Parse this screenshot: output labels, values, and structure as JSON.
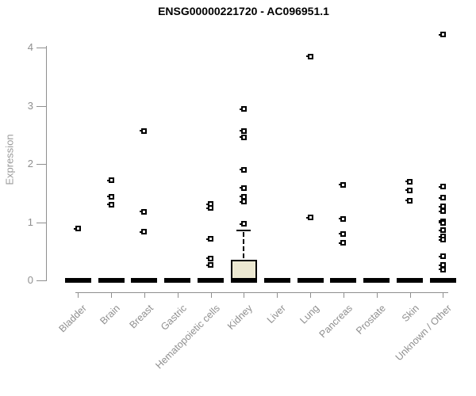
{
  "title": "ENSG00000221720 - AC096951.1",
  "chart_data": {
    "type": "boxplot",
    "title": "ENSG00000221720 - AC096951.1",
    "xlabel": "",
    "ylabel": "Expression",
    "ylim": [
      0,
      4.3
    ],
    "yticks": [
      0,
      1,
      2,
      3,
      4
    ],
    "grid": false,
    "legend": false,
    "categories": [
      "Bladder",
      "Brain",
      "Breast",
      "Gastric",
      "Hematopoietic cells",
      "Kidney",
      "Liver",
      "Lung",
      "Pancreas",
      "Prostate",
      "Skin",
      "Unknown / Other"
    ],
    "boxes": [
      {
        "category": "Bladder",
        "q1": 0,
        "median": 0,
        "q3": 0,
        "whisker_low": 0,
        "whisker_high": 0,
        "outliers": [
          0.89
        ]
      },
      {
        "category": "Brain",
        "q1": 0,
        "median": 0,
        "q3": 0,
        "whisker_low": 0,
        "whisker_high": 0,
        "outliers": [
          1.72,
          1.44,
          1.3
        ]
      },
      {
        "category": "Breast",
        "q1": 0,
        "median": 0,
        "q3": 0,
        "whisker_low": 0,
        "whisker_high": 0,
        "outliers": [
          2.57,
          1.18,
          0.83
        ]
      },
      {
        "category": "Gastric",
        "q1": 0,
        "median": 0,
        "q3": 0,
        "whisker_low": 0,
        "whisker_high": 0,
        "outliers": []
      },
      {
        "category": "Hematopoietic cells",
        "q1": 0,
        "median": 0,
        "q3": 0,
        "whisker_low": 0,
        "whisker_high": 0,
        "outliers": [
          1.31,
          1.24,
          0.71,
          0.38,
          0.26
        ]
      },
      {
        "category": "Kidney",
        "q1": 0,
        "median": 0,
        "q3": 0.35,
        "whisker_low": 0,
        "whisker_high": 0.86,
        "outliers": [
          2.94,
          2.57,
          2.46,
          1.9,
          1.59,
          1.44,
          1.35,
          0.97
        ]
      },
      {
        "category": "Liver",
        "q1": 0,
        "median": 0,
        "q3": 0,
        "whisker_low": 0,
        "whisker_high": 0,
        "outliers": []
      },
      {
        "category": "Lung",
        "q1": 0,
        "median": 0,
        "q3": 0,
        "whisker_low": 0,
        "whisker_high": 0,
        "outliers": [
          3.85,
          1.08
        ]
      },
      {
        "category": "Pancreas",
        "q1": 0,
        "median": 0,
        "q3": 0,
        "whisker_low": 0,
        "whisker_high": 0,
        "outliers": [
          1.64,
          1.06,
          0.8,
          0.64
        ]
      },
      {
        "category": "Prostate",
        "q1": 0,
        "median": 0,
        "q3": 0,
        "whisker_low": 0,
        "whisker_high": 0,
        "outliers": []
      },
      {
        "category": "Skin",
        "q1": 0,
        "median": 0,
        "q3": 0,
        "whisker_low": 0,
        "whisker_high": 0,
        "outliers": [
          1.7,
          1.55,
          1.37
        ]
      },
      {
        "category": "Unknown / Other",
        "q1": 0,
        "median": 0,
        "q3": 0,
        "whisker_low": 0,
        "whisker_high": 0,
        "outliers": [
          4.22,
          1.61,
          1.42,
          1.27,
          1.19,
          1.02,
          0.99,
          0.86,
          0.75,
          0.7,
          0.41,
          0.26,
          0.19
        ]
      }
    ],
    "colors": {
      "box_fill": "#ece8d1",
      "box_border": "#000000",
      "median": "#000000",
      "outlier": "#000000",
      "axis": "#8f8f8f",
      "tick_label": "#8f8f8f",
      "title": "#000000"
    }
  }
}
